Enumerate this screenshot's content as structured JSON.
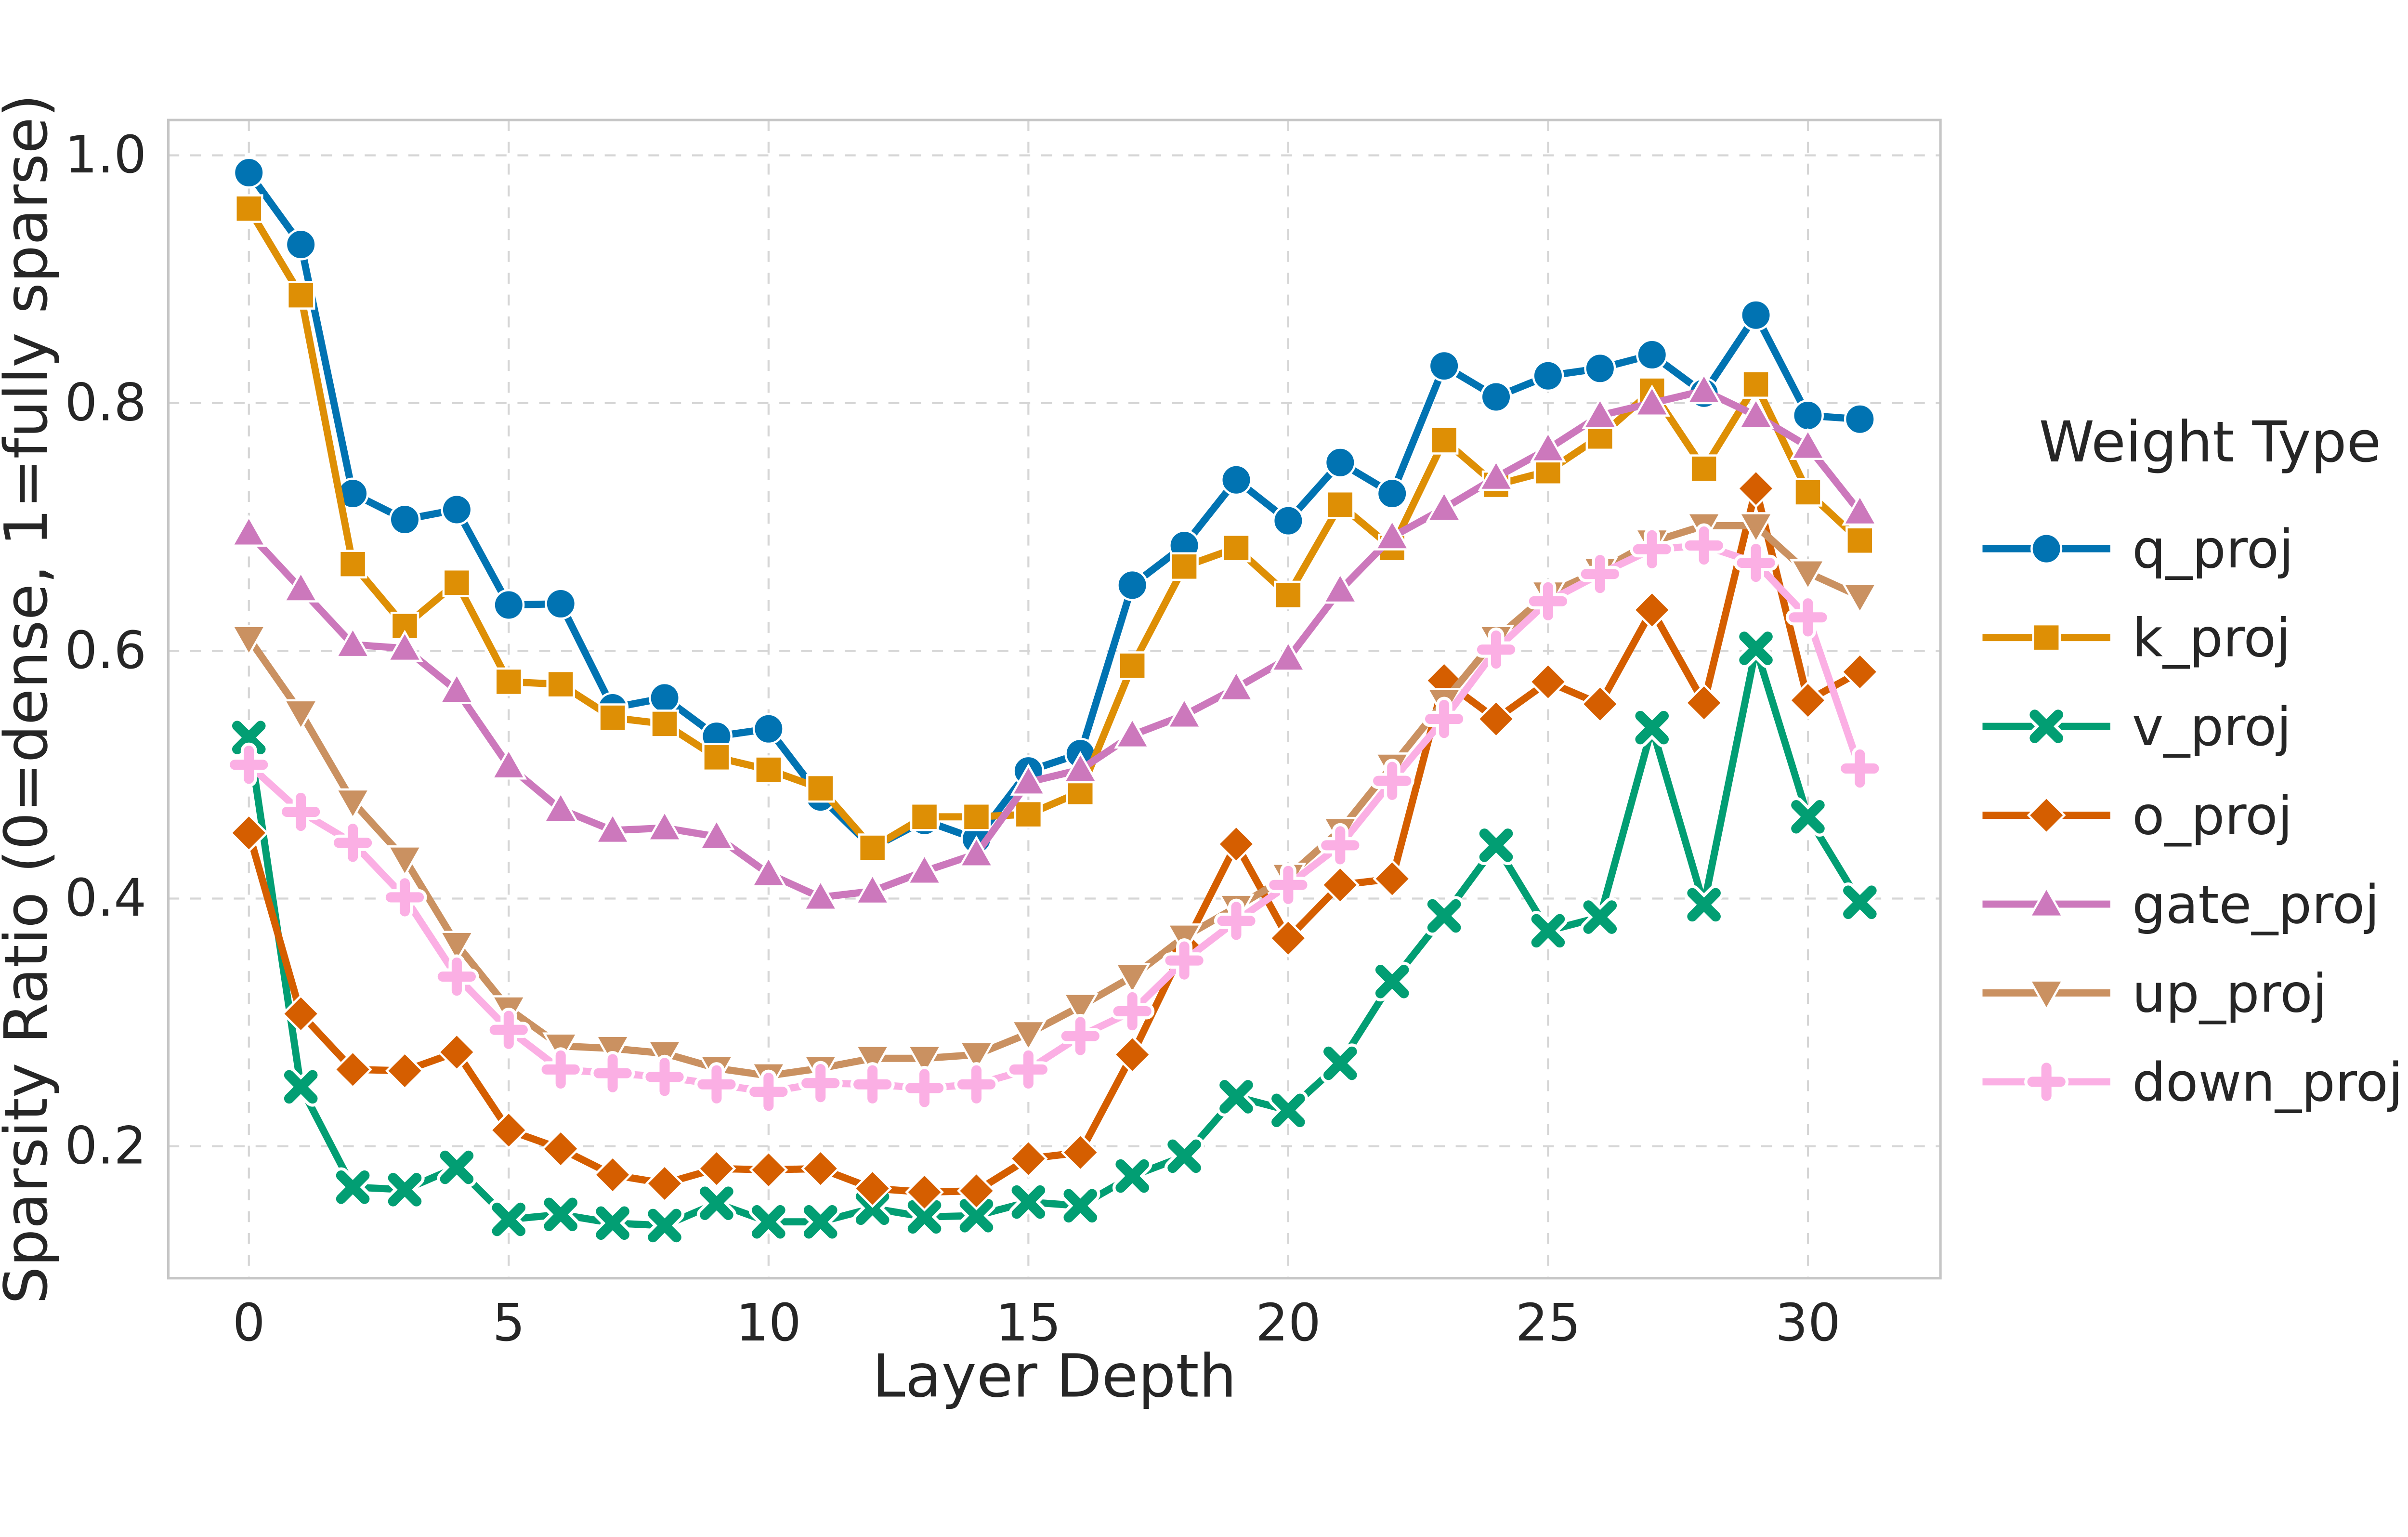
{
  "chart_data": {
    "type": "line",
    "title": "",
    "xlabel": "Layer Depth",
    "ylabel": "Sparsity Ratio (0=dense, 1=fully sparse)",
    "legend_title": "Weight Type",
    "legend_position": "right",
    "grid": true,
    "x": [
      0,
      1,
      2,
      3,
      4,
      5,
      6,
      7,
      8,
      9,
      10,
      11,
      12,
      13,
      14,
      15,
      16,
      17,
      18,
      19,
      20,
      21,
      22,
      23,
      24,
      25,
      26,
      27,
      28,
      29,
      30,
      31
    ],
    "xlim": [
      -1.55,
      32.55
    ],
    "ylim": [
      0.0935,
      1.0285
    ],
    "xticks": [
      0,
      5,
      10,
      15,
      20,
      25,
      30
    ],
    "yticks": [
      0.2,
      0.4,
      0.6,
      0.8,
      1.0
    ],
    "ytick_labels": [
      "0.2",
      "0.4",
      "0.6",
      "0.8",
      "1.0"
    ],
    "series": [
      {
        "name": "q_proj",
        "color": "#0173b2",
        "marker": "circle",
        "values": [
          0.986,
          0.928,
          0.727,
          0.706,
          0.714,
          0.637,
          0.638,
          0.554,
          0.562,
          0.531,
          0.537,
          0.482,
          0.441,
          0.463,
          0.448,
          0.503,
          0.517,
          0.653,
          0.685,
          0.738,
          0.705,
          0.752,
          0.727,
          0.83,
          0.805,
          0.822,
          0.828,
          0.839,
          0.808,
          0.871,
          0.79,
          0.787
        ]
      },
      {
        "name": "k_proj",
        "color": "#de8f05",
        "marker": "square",
        "values": [
          0.957,
          0.887,
          0.67,
          0.62,
          0.655,
          0.575,
          0.573,
          0.546,
          0.541,
          0.514,
          0.504,
          0.489,
          0.441,
          0.466,
          0.466,
          0.468,
          0.486,
          0.588,
          0.668,
          0.683,
          0.645,
          0.718,
          0.683,
          0.77,
          0.734,
          0.745,
          0.773,
          0.81,
          0.747,
          0.815,
          0.728,
          0.689
        ]
      },
      {
        "name": "v_proj",
        "color": "#029e73",
        "marker": "x",
        "values": [
          0.53,
          0.248,
          0.167,
          0.165,
          0.183,
          0.141,
          0.145,
          0.138,
          0.136,
          0.154,
          0.139,
          0.139,
          0.15,
          0.143,
          0.144,
          0.155,
          0.152,
          0.176,
          0.192,
          0.24,
          0.229,
          0.267,
          0.333,
          0.386,
          0.443,
          0.374,
          0.385,
          0.538,
          0.395,
          0.602,
          0.466,
          0.397
        ]
      },
      {
        "name": "o_proj",
        "color": "#d55e00",
        "marker": "diamond",
        "values": [
          0.453,
          0.307,
          0.262,
          0.261,
          0.276,
          0.213,
          0.198,
          0.177,
          0.17,
          0.182,
          0.181,
          0.182,
          0.166,
          0.163,
          0.164,
          0.19,
          0.195,
          0.274,
          0.361,
          0.444,
          0.368,
          0.411,
          0.416,
          0.576,
          0.545,
          0.575,
          0.557,
          0.633,
          0.558,
          0.731,
          0.56,
          0.583
        ]
      },
      {
        "name": "gate_proj",
        "color": "#cc78bc",
        "marker": "triangle-up",
        "values": [
          0.695,
          0.65,
          0.605,
          0.602,
          0.568,
          0.507,
          0.472,
          0.455,
          0.457,
          0.45,
          0.42,
          0.401,
          0.406,
          0.422,
          0.436,
          0.494,
          0.504,
          0.532,
          0.548,
          0.57,
          0.594,
          0.649,
          0.692,
          0.715,
          0.74,
          0.763,
          0.79,
          0.8,
          0.81,
          0.79,
          0.765,
          0.712
        ]
      },
      {
        "name": "up_proj",
        "color": "#ca9161",
        "marker": "triangle-down",
        "values": [
          0.61,
          0.55,
          0.478,
          0.432,
          0.363,
          0.311,
          0.281,
          0.279,
          0.275,
          0.263,
          0.257,
          0.263,
          0.271,
          0.271,
          0.274,
          0.291,
          0.313,
          0.337,
          0.369,
          0.393,
          0.418,
          0.455,
          0.507,
          0.559,
          0.61,
          0.646,
          0.665,
          0.688,
          0.701,
          0.701,
          0.663,
          0.644
        ]
      },
      {
        "name": "down_proj",
        "color": "#fbafe4",
        "marker": "plus",
        "values": [
          0.508,
          0.47,
          0.445,
          0.401,
          0.337,
          0.294,
          0.262,
          0.259,
          0.256,
          0.25,
          0.244,
          0.251,
          0.25,
          0.247,
          0.25,
          0.262,
          0.289,
          0.309,
          0.35,
          0.382,
          0.411,
          0.443,
          0.495,
          0.545,
          0.601,
          0.64,
          0.662,
          0.682,
          0.685,
          0.671,
          0.627,
          0.505
        ]
      }
    ],
    "styles": {
      "grid_color": "#d6d6d6",
      "frame_color": "#c6c6c6",
      "text_color": "#262626",
      "background": "#ffffff"
    }
  }
}
